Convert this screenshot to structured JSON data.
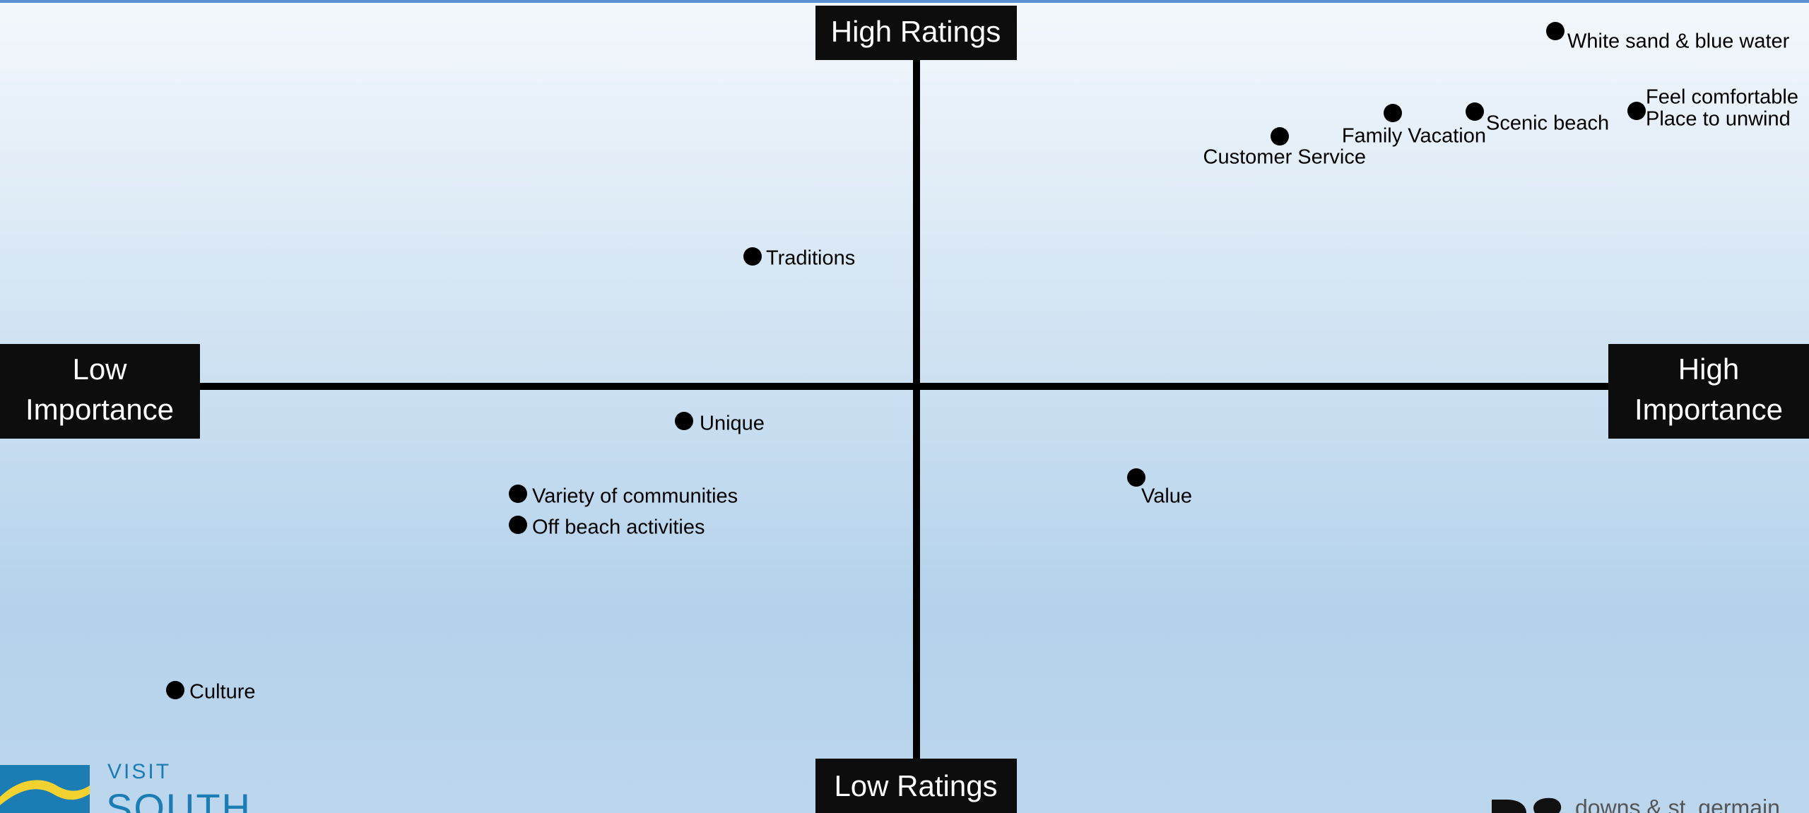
{
  "quadrant": {
    "top_label": "High Ratings",
    "bottom_label": "Low Ratings",
    "left_label": [
      "Low",
      "Importance"
    ],
    "right_label": [
      "High",
      "Importance"
    ]
  },
  "points": [
    {
      "lines": [
        "White sand & blue water"
      ]
    },
    {
      "lines": [
        "Feel comfortable",
        "Place to unwind"
      ]
    },
    {
      "lines": [
        "Scenic beach"
      ]
    },
    {
      "lines": [
        "Family Vacation"
      ]
    },
    {
      "lines": [
        "Customer Service"
      ]
    },
    {
      "lines": [
        "Traditions"
      ]
    },
    {
      "lines": [
        "Unique"
      ]
    },
    {
      "lines": [
        "Variety of communities"
      ]
    },
    {
      "lines": [
        "Off beach activities"
      ]
    },
    {
      "lines": [
        "Value"
      ]
    },
    {
      "lines": [
        "Culture"
      ]
    }
  ],
  "footer": {
    "logo_left": [
      "VISIT",
      "SOUTH"
    ],
    "logo_right": "downs & st. germain"
  }
}
